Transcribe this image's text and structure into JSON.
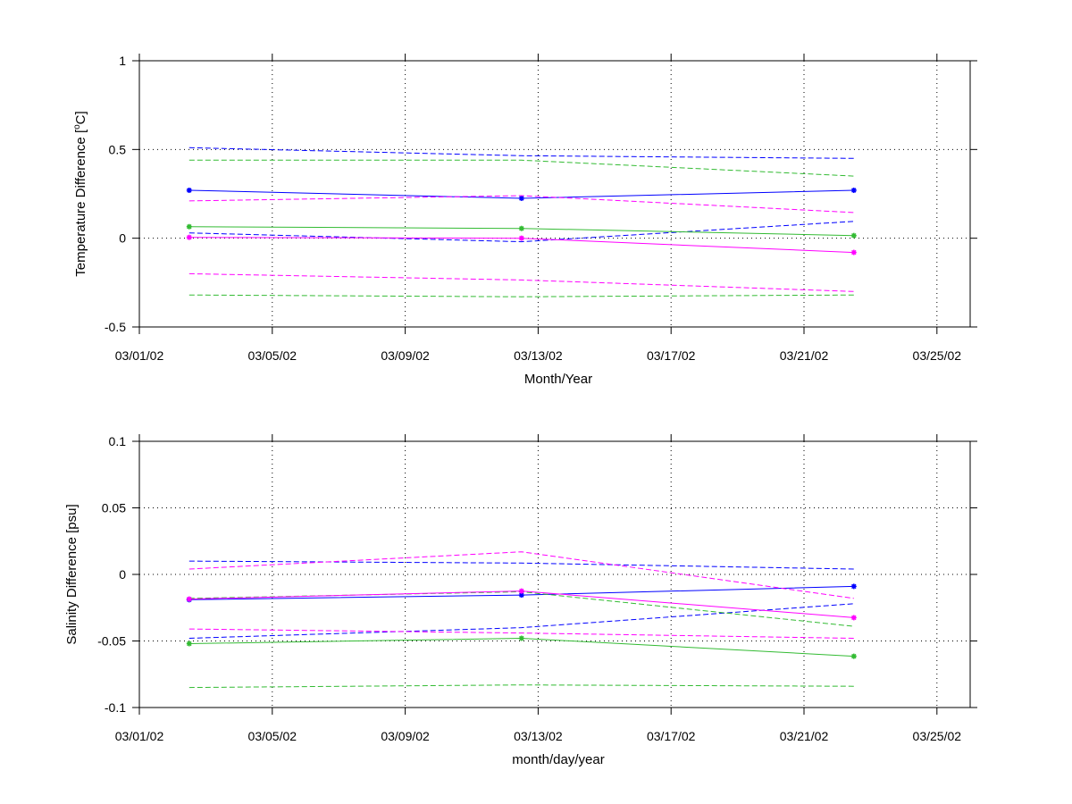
{
  "chart_data": [
    {
      "type": "line",
      "title": "",
      "xlabel": "Month/Year",
      "ylabel_main": "Temperature Difference [",
      "ylabel_sup": "o",
      "ylabel_tail": "C]",
      "xlim": [
        "2002-03-01",
        "2002-03-26"
      ],
      "ylim": [
        -0.5,
        1
      ],
      "xticks": [
        "2002-03-01",
        "2002-03-05",
        "2002-03-09",
        "2002-03-13",
        "2002-03-17",
        "2002-03-21",
        "2002-03-25"
      ],
      "xtick_labels": [
        "03/01/02",
        "03/05/02",
        "03/09/02",
        "03/13/02",
        "03/17/02",
        "03/21/02",
        "03/25/02"
      ],
      "yticks": [
        -0.5,
        0,
        0.5,
        1
      ],
      "ytick_labels": [
        "-0.5",
        "0",
        "0.5",
        "1"
      ],
      "grid": true,
      "x": [
        "2002-03-02 12:00",
        "2002-03-12 12:00",
        "2002-03-22 12:00"
      ],
      "series": [
        {
          "color": "#0000ff",
          "style": "solid",
          "marker": "*",
          "values": [
            0.27,
            0.225,
            0.27
          ]
        },
        {
          "color": "#0000ff",
          "style": "dashed",
          "values": [
            0.51,
            0.465,
            0.45
          ]
        },
        {
          "color": "#0000ff",
          "style": "dashed",
          "values": [
            0.03,
            -0.02,
            0.095
          ]
        },
        {
          "color": "#33bb33",
          "style": "solid",
          "marker": "*",
          "values": [
            0.065,
            0.055,
            0.015
          ]
        },
        {
          "color": "#33bb33",
          "style": "dashed",
          "values": [
            0.44,
            0.44,
            0.35
          ]
        },
        {
          "color": "#33bb33",
          "style": "dashed",
          "values": [
            -0.32,
            -0.33,
            -0.32
          ]
        },
        {
          "color": "#ff00ff",
          "style": "solid",
          "marker": "*",
          "values": [
            0.005,
            0.0,
            -0.08
          ]
        },
        {
          "color": "#ff00ff",
          "style": "dashed",
          "values": [
            0.21,
            0.24,
            0.145
          ]
        },
        {
          "color": "#ff00ff",
          "style": "dashed",
          "values": [
            -0.2,
            -0.235,
            -0.3
          ]
        }
      ]
    },
    {
      "type": "line",
      "title": "",
      "xlabel": "month/day/year",
      "ylabel": "Salinity Difference [psu]",
      "xlim": [
        "2002-03-01",
        "2002-03-26"
      ],
      "ylim": [
        -0.1,
        0.1
      ],
      "xticks": [
        "2002-03-01",
        "2002-03-05",
        "2002-03-09",
        "2002-03-13",
        "2002-03-17",
        "2002-03-21",
        "2002-03-25"
      ],
      "xtick_labels": [
        "03/01/02",
        "03/05/02",
        "03/09/02",
        "03/13/02",
        "03/17/02",
        "03/21/02",
        "03/25/02"
      ],
      "yticks": [
        -0.1,
        -0.05,
        0,
        0.05,
        0.1
      ],
      "ytick_labels": [
        "-0.1",
        "-0.05",
        "0",
        "0.05",
        "0.1"
      ],
      "grid": true,
      "x": [
        "2002-03-02 12:00",
        "2002-03-12 12:00",
        "2002-03-22 12:00"
      ],
      "series": [
        {
          "color": "#0000ff",
          "style": "solid",
          "marker": "*",
          "values": [
            -0.019,
            -0.0155,
            -0.009
          ]
        },
        {
          "color": "#0000ff",
          "style": "dashed",
          "values": [
            0.01,
            0.0085,
            0.004
          ]
        },
        {
          "color": "#0000ff",
          "style": "dashed",
          "values": [
            -0.048,
            -0.04,
            -0.022
          ]
        },
        {
          "color": "#33bb33",
          "style": "solid",
          "marker": "*",
          "values": [
            -0.052,
            -0.048,
            -0.0615
          ]
        },
        {
          "color": "#33bb33",
          "style": "dashed",
          "values": [
            -0.018,
            -0.013,
            -0.039
          ]
        },
        {
          "color": "#33bb33",
          "style": "dashed",
          "values": [
            -0.085,
            -0.083,
            -0.084
          ]
        },
        {
          "color": "#ff00ff",
          "style": "solid",
          "marker": "*",
          "values": [
            -0.0185,
            -0.0125,
            -0.0325
          ]
        },
        {
          "color": "#ff00ff",
          "style": "dashed",
          "values": [
            0.004,
            0.017,
            -0.018
          ]
        },
        {
          "color": "#ff00ff",
          "style": "dashed",
          "values": [
            -0.041,
            -0.044,
            -0.048
          ]
        }
      ]
    }
  ]
}
